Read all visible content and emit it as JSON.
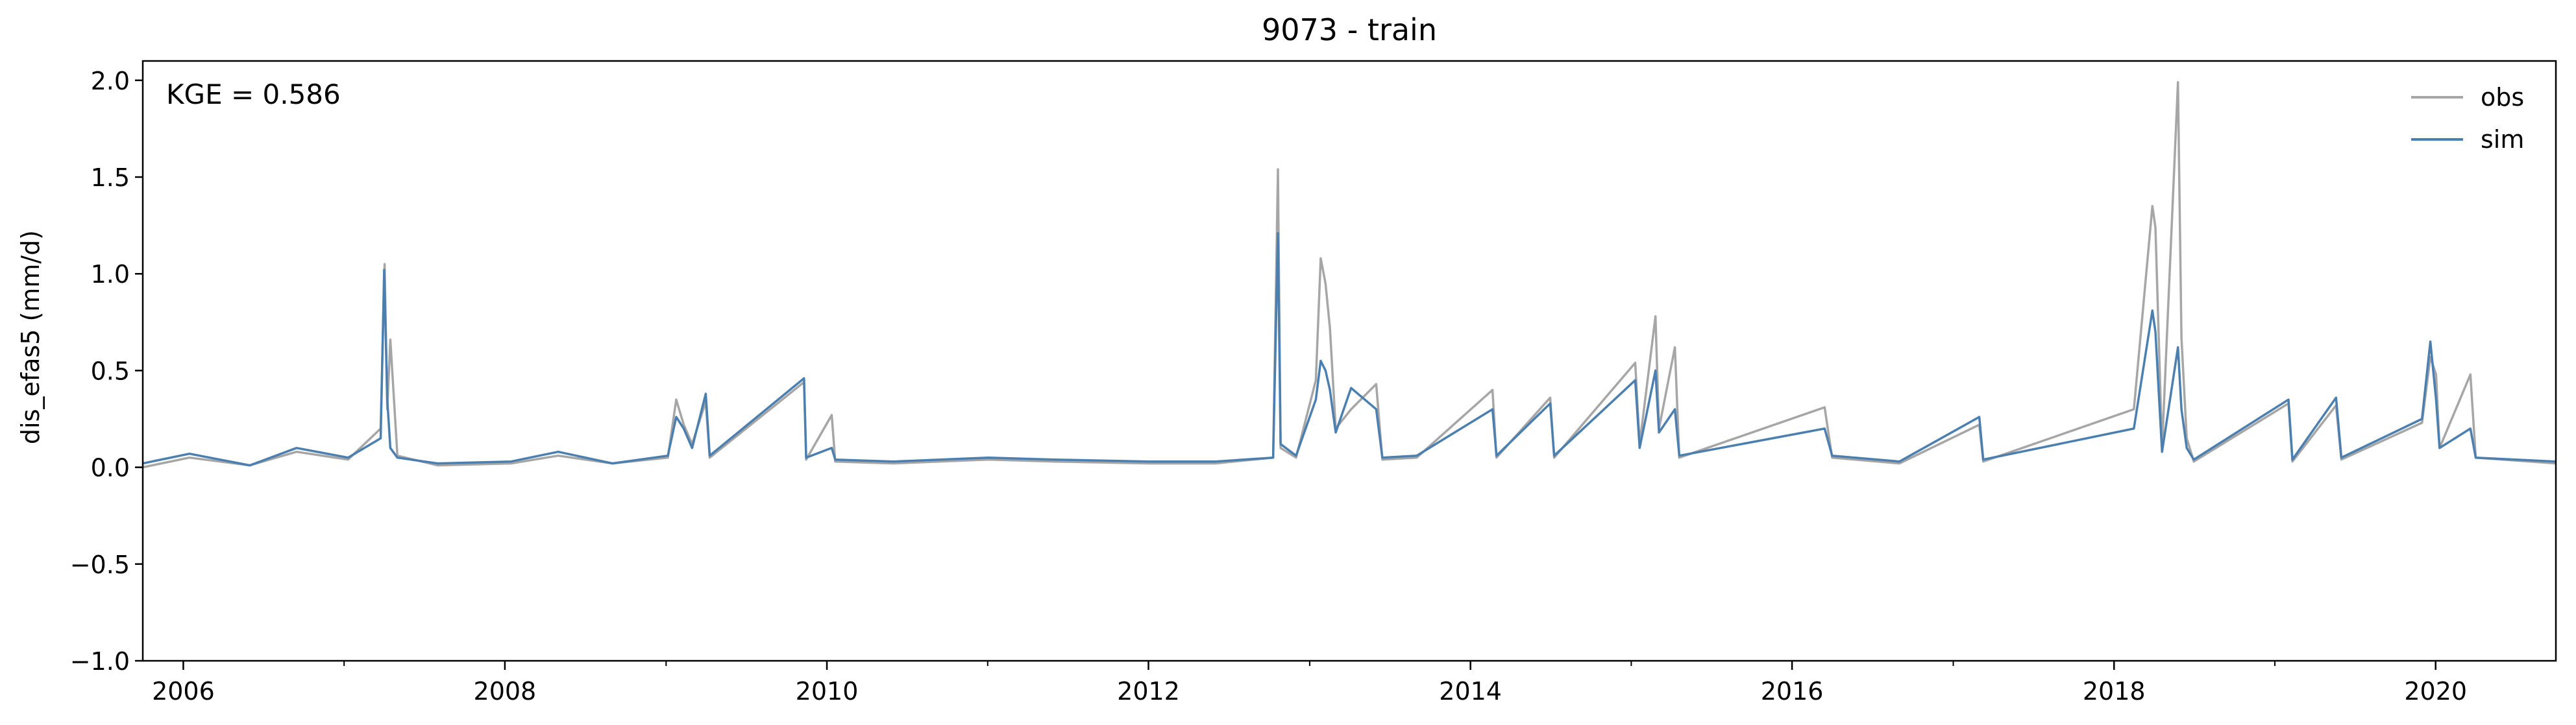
{
  "chart_data": {
    "type": "line",
    "title": "9073 - train",
    "xlabel": "",
    "ylabel": "dis_efas5 (mm/d)",
    "annotation": "KGE = 0.586",
    "xlim": [
      "2005-10-01",
      "2020-09-30"
    ],
    "ylim": [
      -1.0,
      2.1
    ],
    "x_ticks": [
      "2006",
      "2008",
      "2010",
      "2012",
      "2014",
      "2016",
      "2018",
      "2020"
    ],
    "y_ticks": [
      "−1.0",
      "−0.5",
      "0.0",
      "0.5",
      "1.0",
      "1.5",
      "2.0"
    ],
    "grid": false,
    "legend": "top-right",
    "series": [
      {
        "name": "obs",
        "color": "#a6a6a6",
        "points": [
          [
            "2005-10-01",
            0.0
          ],
          [
            "2006-01-15",
            0.05
          ],
          [
            "2006-06-01",
            0.01
          ],
          [
            "2006-09-15",
            0.08
          ],
          [
            "2007-01-10",
            0.04
          ],
          [
            "2007-03-25",
            0.2
          ],
          [
            "2007-04-03",
            1.05
          ],
          [
            "2007-04-09",
            0.3
          ],
          [
            "2007-04-16",
            0.66
          ],
          [
            "2007-05-02",
            0.06
          ],
          [
            "2007-08-01",
            0.01
          ],
          [
            "2008-01-15",
            0.02
          ],
          [
            "2008-05-01",
            0.06
          ],
          [
            "2008-09-01",
            0.02
          ],
          [
            "2009-01-05",
            0.05
          ],
          [
            "2009-01-24",
            0.35
          ],
          [
            "2009-02-10",
            0.22
          ],
          [
            "2009-03-01",
            0.12
          ],
          [
            "2009-04-01",
            0.34
          ],
          [
            "2009-04-10",
            0.05
          ],
          [
            "2009-11-10",
            0.44
          ],
          [
            "2009-11-15",
            0.04
          ],
          [
            "2010-01-12",
            0.27
          ],
          [
            "2010-01-20",
            0.03
          ],
          [
            "2010-06-01",
            0.02
          ],
          [
            "2011-01-01",
            0.04
          ],
          [
            "2011-06-01",
            0.03
          ],
          [
            "2012-01-01",
            0.02
          ],
          [
            "2012-06-01",
            0.02
          ],
          [
            "2012-10-10",
            0.05
          ],
          [
            "2012-10-21",
            1.54
          ],
          [
            "2012-10-27",
            0.1
          ],
          [
            "2012-12-01",
            0.05
          ],
          [
            "2013-01-15",
            0.45
          ],
          [
            "2013-01-26",
            1.08
          ],
          [
            "2013-02-06",
            0.95
          ],
          [
            "2013-02-16",
            0.72
          ],
          [
            "2013-03-01",
            0.2
          ],
          [
            "2013-04-05",
            0.3
          ],
          [
            "2013-06-01",
            0.43
          ],
          [
            "2013-06-15",
            0.04
          ],
          [
            "2013-09-01",
            0.05
          ],
          [
            "2014-02-20",
            0.4
          ],
          [
            "2014-03-01",
            0.05
          ],
          [
            "2014-07-01",
            0.36
          ],
          [
            "2014-07-10",
            0.05
          ],
          [
            "2015-01-10",
            0.54
          ],
          [
            "2015-01-20",
            0.12
          ],
          [
            "2015-02-25",
            0.78
          ],
          [
            "2015-03-05",
            0.2
          ],
          [
            "2015-04-10",
            0.62
          ],
          [
            "2015-04-20",
            0.05
          ],
          [
            "2016-03-15",
            0.31
          ],
          [
            "2016-04-01",
            0.05
          ],
          [
            "2016-09-01",
            0.02
          ],
          [
            "2017-03-01",
            0.22
          ],
          [
            "2017-03-10",
            0.03
          ],
          [
            "2018-02-15",
            0.3
          ],
          [
            "2018-03-29",
            1.35
          ],
          [
            "2018-04-05",
            1.24
          ],
          [
            "2018-04-20",
            0.1
          ],
          [
            "2018-05-26",
            1.99
          ],
          [
            "2018-06-03",
            0.67
          ],
          [
            "2018-06-15",
            0.15
          ],
          [
            "2018-07-01",
            0.03
          ],
          [
            "2019-02-01",
            0.33
          ],
          [
            "2019-02-10",
            0.03
          ],
          [
            "2019-05-20",
            0.32
          ],
          [
            "2019-06-01",
            0.04
          ],
          [
            "2019-12-01",
            0.23
          ],
          [
            "2019-12-20",
            0.57
          ],
          [
            "2020-01-02",
            0.48
          ],
          [
            "2020-01-10",
            0.1
          ],
          [
            "2020-03-20",
            0.48
          ],
          [
            "2020-04-01",
            0.05
          ],
          [
            "2020-09-30",
            0.02
          ]
        ]
      },
      {
        "name": "sim",
        "color": "#4a7fb0",
        "points": [
          [
            "2005-10-01",
            0.02
          ],
          [
            "2006-01-15",
            0.07
          ],
          [
            "2006-06-01",
            0.01
          ],
          [
            "2006-09-15",
            0.1
          ],
          [
            "2007-01-10",
            0.05
          ],
          [
            "2007-03-25",
            0.15
          ],
          [
            "2007-04-02",
            1.02
          ],
          [
            "2007-04-09",
            0.35
          ],
          [
            "2007-04-16",
            0.1
          ],
          [
            "2007-05-02",
            0.05
          ],
          [
            "2007-08-01",
            0.02
          ],
          [
            "2008-01-15",
            0.03
          ],
          [
            "2008-05-01",
            0.08
          ],
          [
            "2008-09-01",
            0.02
          ],
          [
            "2009-01-05",
            0.06
          ],
          [
            "2009-01-24",
            0.26
          ],
          [
            "2009-02-10",
            0.2
          ],
          [
            "2009-03-01",
            0.1
          ],
          [
            "2009-04-01",
            0.38
          ],
          [
            "2009-04-10",
            0.06
          ],
          [
            "2009-11-10",
            0.46
          ],
          [
            "2009-11-15",
            0.05
          ],
          [
            "2010-01-12",
            0.1
          ],
          [
            "2010-01-20",
            0.04
          ],
          [
            "2010-06-01",
            0.03
          ],
          [
            "2011-01-01",
            0.05
          ],
          [
            "2011-06-01",
            0.04
          ],
          [
            "2012-01-01",
            0.03
          ],
          [
            "2012-06-01",
            0.03
          ],
          [
            "2012-10-10",
            0.05
          ],
          [
            "2012-10-21",
            1.21
          ],
          [
            "2012-10-27",
            0.12
          ],
          [
            "2012-12-01",
            0.06
          ],
          [
            "2013-01-15",
            0.35
          ],
          [
            "2013-01-26",
            0.55
          ],
          [
            "2013-02-06",
            0.5
          ],
          [
            "2013-02-16",
            0.4
          ],
          [
            "2013-03-01",
            0.18
          ],
          [
            "2013-04-05",
            0.41
          ],
          [
            "2013-06-01",
            0.3
          ],
          [
            "2013-06-15",
            0.05
          ],
          [
            "2013-09-01",
            0.06
          ],
          [
            "2014-02-20",
            0.3
          ],
          [
            "2014-03-01",
            0.06
          ],
          [
            "2014-07-01",
            0.33
          ],
          [
            "2014-07-10",
            0.06
          ],
          [
            "2015-01-10",
            0.45
          ],
          [
            "2015-01-20",
            0.1
          ],
          [
            "2015-02-25",
            0.5
          ],
          [
            "2015-03-05",
            0.18
          ],
          [
            "2015-04-10",
            0.3
          ],
          [
            "2015-04-20",
            0.06
          ],
          [
            "2016-03-15",
            0.2
          ],
          [
            "2016-04-01",
            0.06
          ],
          [
            "2016-09-01",
            0.03
          ],
          [
            "2017-03-01",
            0.26
          ],
          [
            "2017-03-10",
            0.04
          ],
          [
            "2018-02-15",
            0.2
          ],
          [
            "2018-03-29",
            0.81
          ],
          [
            "2018-04-05",
            0.7
          ],
          [
            "2018-04-20",
            0.08
          ],
          [
            "2018-05-26",
            0.62
          ],
          [
            "2018-06-03",
            0.3
          ],
          [
            "2018-06-15",
            0.1
          ],
          [
            "2018-07-01",
            0.04
          ],
          [
            "2019-02-01",
            0.35
          ],
          [
            "2019-02-10",
            0.04
          ],
          [
            "2019-05-20",
            0.36
          ],
          [
            "2019-06-01",
            0.05
          ],
          [
            "2019-12-01",
            0.25
          ],
          [
            "2019-12-20",
            0.65
          ],
          [
            "2020-01-02",
            0.35
          ],
          [
            "2020-01-10",
            0.1
          ],
          [
            "2020-03-20",
            0.2
          ],
          [
            "2020-04-01",
            0.05
          ],
          [
            "2020-09-30",
            0.03
          ]
        ]
      }
    ]
  }
}
